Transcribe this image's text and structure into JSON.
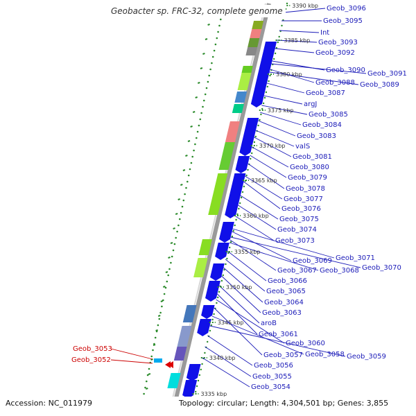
{
  "title": "Geobacter sp. FRC-32, complete genome",
  "footer": {
    "accession": "Accession: NC_011979",
    "summary": "Topology: circular; Length: 4,304,501 bp; Genes: 3,855"
  },
  "colors": {
    "cds_blue": "#1010e8",
    "label_blue": "#1a1ab8",
    "label_red": "#cc0000",
    "backbone": "#9a9a9a",
    "tick_green": "#2a8a2a"
  },
  "kbp_labels": [
    "3390 kbp",
    "3385 kbp",
    "3380 kbp",
    "3375 kbp",
    "3370 kbp",
    "3365 kbp",
    "3360 kbp",
    "3355 kbp",
    "3350 kbp",
    "3345 kbp",
    "3340 kbp",
    "3335 kbp"
  ],
  "labels_blue": [
    "Geob_3096",
    "Geob_3095",
    "Int",
    "Geob_3093",
    "Geob_3092",
    "Geob_3090",
    "Geob_3091",
    "Geob_3088",
    "Geob_3089",
    "Geob_3087",
    "argJ",
    "Geob_3085",
    "Geob_3084",
    "Geob_3083",
    "valS",
    "Geob_3081",
    "Geob_3080",
    "Geob_3079",
    "Geob_3078",
    "Geob_3077",
    "Geob_3076",
    "Geob_3075",
    "Geob_3074",
    "Geob_3073",
    "Geob_3071",
    "Geob_3069",
    "Geob_3070",
    "Geob_3067",
    "Geob_3068",
    "Geob_3066",
    "Geob_3065",
    "Geob_3064",
    "Geob_3063",
    "aroB",
    "Geob_3061",
    "Geob_3060",
    "Geob_3057",
    "Geob_3058",
    "Geob_3059",
    "Geob_3056",
    "Geob_3055",
    "Geob_3054"
  ],
  "labels_red": [
    "Geob_3053",
    "Geob_3052"
  ]
}
